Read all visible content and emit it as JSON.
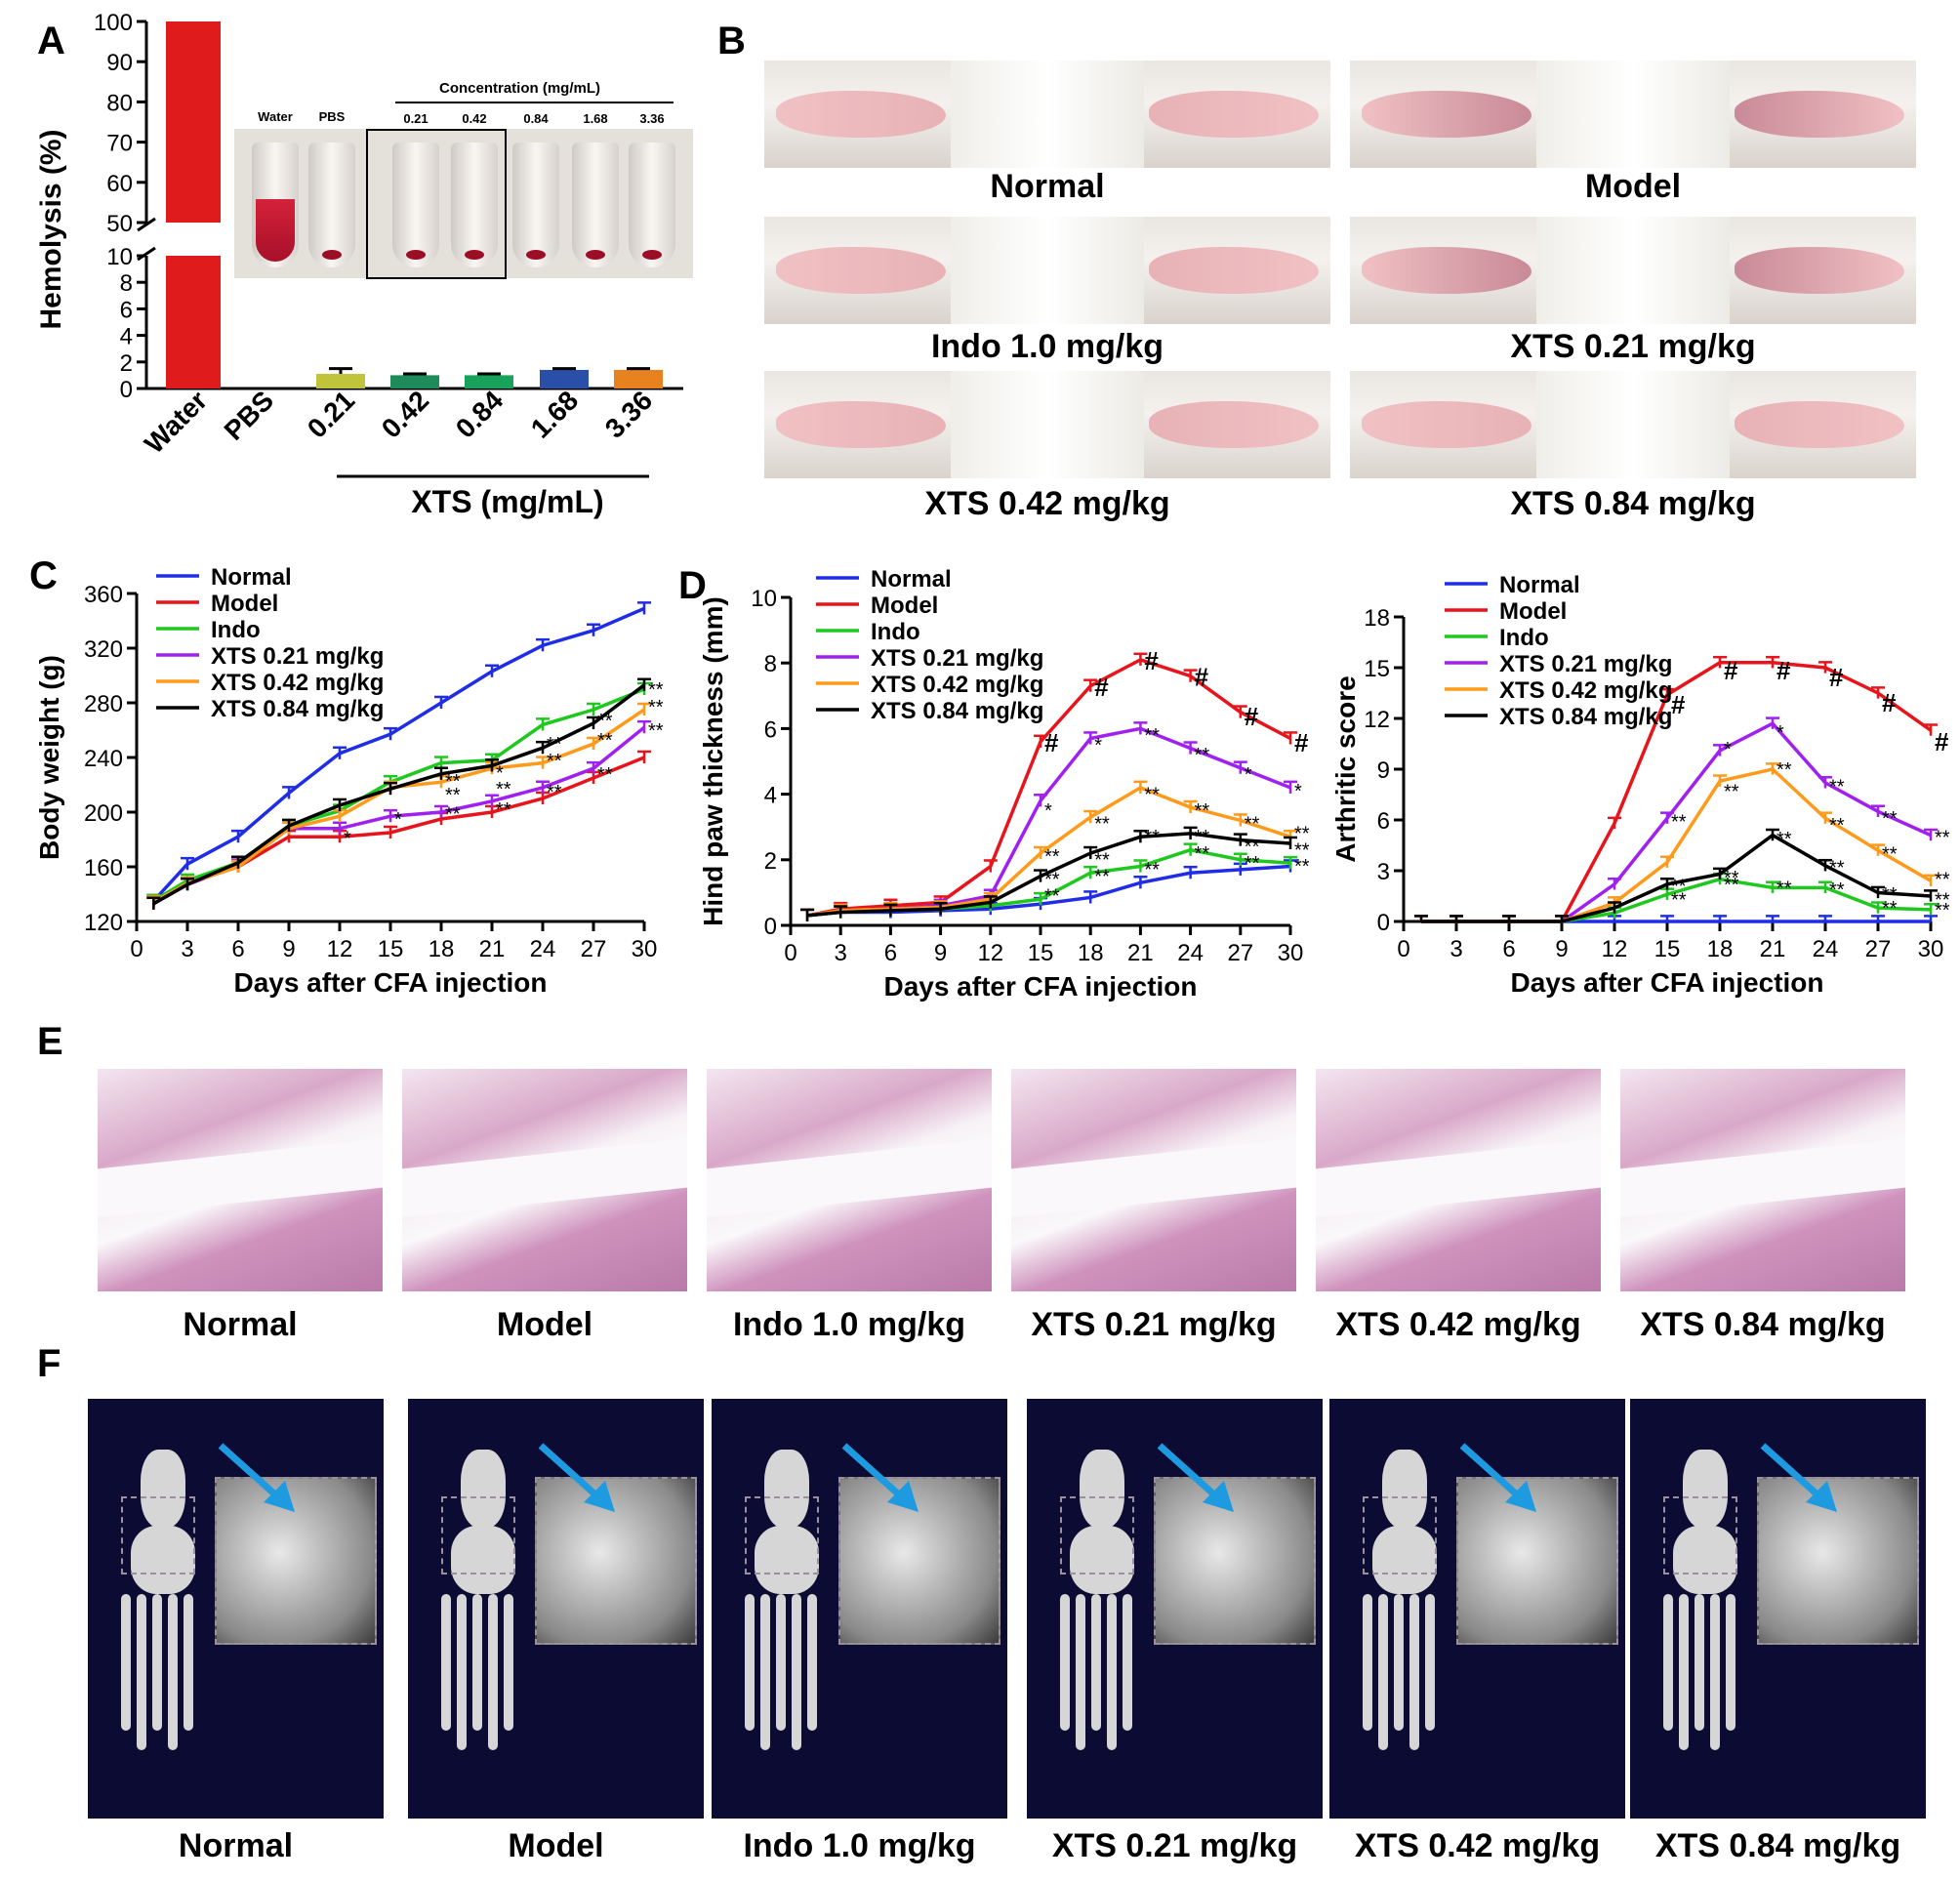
{
  "panels": {
    "A": "A",
    "B": "B",
    "C": "C",
    "D": "D",
    "E": "E",
    "F": "F"
  },
  "panel_b": {
    "captions": [
      "Normal",
      "Model",
      "Indo 1.0 mg/kg",
      "XTS 0.21 mg/kg",
      "XTS 0.42 mg/kg",
      "XTS 0.84 mg/kg"
    ]
  },
  "panel_e": {
    "captions": [
      "Normal",
      "Model",
      "Indo 1.0 mg/kg",
      "XTS 0.21 mg/kg",
      "XTS 0.42 mg/kg",
      "XTS 0.84 mg/kg"
    ]
  },
  "panel_f": {
    "captions": [
      "Normal",
      "Model",
      "Indo 1.0 mg/kg",
      "XTS 0.21 mg/kg",
      "XTS 0.42 mg/kg",
      "XTS 0.84 mg/kg"
    ]
  },
  "colors": {
    "normal": "#1f2de6",
    "model": "#e8141b",
    "indo": "#1ec81e",
    "xts021": "#a020f0",
    "xts042": "#ff9a1a",
    "xts084": "#000000",
    "arrow": "#1e9be0"
  },
  "chart_data": [
    {
      "id": "hemolysis",
      "type": "bar",
      "ylabel": "Hemolysis (%)",
      "xlabel_group": "XTS (mg/mL)",
      "categories": [
        "Water",
        "PBS",
        "0.21",
        "0.42",
        "0.84",
        "1.68",
        "3.36"
      ],
      "values": [
        100,
        0,
        1.1,
        1.0,
        1.0,
        1.4,
        1.4
      ],
      "errors": [
        0,
        0,
        0.4,
        0.1,
        0.1,
        0.1,
        0.1
      ],
      "bar_colors": [
        "#e01b1b",
        "#ffffff",
        "#bfc43a",
        "#1f8a5a",
        "#19a35a",
        "#2a4fa8",
        "#e8821e"
      ],
      "yticks_low": [
        "0",
        "2",
        "4",
        "6",
        "8",
        "10"
      ],
      "yticks_high": [
        "50",
        "60",
        "70",
        "80",
        "90",
        "100"
      ],
      "inset": {
        "title": "Concentration (mg/mL)",
        "tubes": [
          "Water",
          "PBS",
          "0.21",
          "0.42",
          "0.84",
          "1.68",
          "3.36"
        ]
      }
    },
    {
      "id": "body_weight",
      "type": "line",
      "ylabel": "Body weight (g)",
      "xlabel": "Days after CFA injection",
      "x": [
        1,
        3,
        6,
        9,
        12,
        15,
        18,
        21,
        24,
        27,
        30
      ],
      "xticks": [
        0,
        3,
        6,
        9,
        12,
        15,
        18,
        21,
        24,
        27,
        30
      ],
      "ylim": [
        120,
        360
      ],
      "yticks": [
        120,
        160,
        200,
        240,
        280,
        320,
        360
      ],
      "series": [
        {
          "name": "Normal",
          "key": "normal",
          "values": [
            135,
            162,
            182,
            214,
            243,
            257,
            280,
            303,
            322,
            333,
            349
          ]
        },
        {
          "name": "Model",
          "key": "model",
          "values": [
            133,
            148,
            160,
            182,
            182,
            185,
            195,
            200,
            210,
            225,
            240
          ]
        },
        {
          "name": "Indo",
          "key": "indo",
          "values": [
            135,
            150,
            163,
            190,
            201,
            222,
            236,
            238,
            264,
            275,
            290
          ]
        },
        {
          "name": "XTS 0.21 mg/kg",
          "key": "xts021",
          "values": [
            134,
            147,
            161,
            188,
            188,
            197,
            200,
            208,
            218,
            232,
            262
          ]
        },
        {
          "name": "XTS 0.42 mg/kg",
          "key": "xts042",
          "values": [
            134,
            148,
            160,
            188,
            197,
            218,
            222,
            232,
            236,
            250,
            275
          ]
        },
        {
          "name": "XTS 0.84 mg/kg",
          "key": "xts084",
          "values": [
            133,
            147,
            163,
            190,
            205,
            217,
            228,
            234,
            247,
            265,
            293
          ]
        }
      ],
      "annotations": [
        {
          "x": 12,
          "y": 176,
          "text": "*"
        },
        {
          "x": 15,
          "y": 190,
          "text": "*"
        },
        {
          "x": 18,
          "y": 218,
          "text": "**"
        },
        {
          "x": 18,
          "y": 208,
          "text": "**"
        },
        {
          "x": 18,
          "y": 194,
          "text": "**"
        },
        {
          "x": 21,
          "y": 224,
          "text": "*"
        },
        {
          "x": 21,
          "y": 212,
          "text": "**"
        },
        {
          "x": 21,
          "y": 197,
          "text": "**"
        },
        {
          "x": 24,
          "y": 245,
          "text": "**"
        },
        {
          "x": 24,
          "y": 233,
          "text": "**"
        },
        {
          "x": 24,
          "y": 210,
          "text": "**"
        },
        {
          "x": 27,
          "y": 262,
          "text": "**"
        },
        {
          "x": 27,
          "y": 248,
          "text": "**"
        },
        {
          "x": 27,
          "y": 223,
          "text": "**"
        },
        {
          "x": 30,
          "y": 285,
          "text": "**"
        },
        {
          "x": 30,
          "y": 272,
          "text": "**"
        },
        {
          "x": 30,
          "y": 255,
          "text": "**"
        }
      ]
    },
    {
      "id": "paw_thickness",
      "type": "line",
      "ylabel": "Hind paw thickness (mm)",
      "xlabel": "Days after CFA injection",
      "x": [
        1,
        3,
        6,
        9,
        12,
        15,
        18,
        21,
        24,
        27,
        30
      ],
      "xticks": [
        0,
        3,
        6,
        9,
        12,
        15,
        18,
        21,
        24,
        27,
        30
      ],
      "ylim": [
        0,
        10
      ],
      "yticks": [
        0,
        2,
        4,
        6,
        8,
        10
      ],
      "series": [
        {
          "name": "Normal",
          "key": "normal",
          "values": [
            0.3,
            0.4,
            0.4,
            0.45,
            0.5,
            0.65,
            0.85,
            1.3,
            1.6,
            1.7,
            1.8
          ]
        },
        {
          "name": "Model",
          "key": "model",
          "values": [
            0.3,
            0.5,
            0.6,
            0.7,
            1.8,
            5.6,
            7.3,
            8.1,
            7.6,
            6.5,
            5.7
          ]
        },
        {
          "name": "Indo",
          "key": "indo",
          "values": [
            0.3,
            0.4,
            0.45,
            0.5,
            0.6,
            0.8,
            1.6,
            1.8,
            2.3,
            2.0,
            1.9
          ]
        },
        {
          "name": "XTS 0.21 mg/kg",
          "key": "xts021",
          "values": [
            0.3,
            0.45,
            0.5,
            0.6,
            0.9,
            3.8,
            5.7,
            6.0,
            5.4,
            4.8,
            4.2
          ]
        },
        {
          "name": "XTS 0.42 mg/kg",
          "key": "xts042",
          "values": [
            0.3,
            0.45,
            0.5,
            0.55,
            0.8,
            2.2,
            3.3,
            4.2,
            3.6,
            3.2,
            2.7
          ]
        },
        {
          "name": "XTS 0.84 mg/kg",
          "key": "xts084",
          "values": [
            0.3,
            0.4,
            0.45,
            0.5,
            0.7,
            1.5,
            2.2,
            2.7,
            2.8,
            2.6,
            2.5
          ]
        }
      ],
      "annotations": [
        {
          "x": 15,
          "y": 5.3,
          "text": "#"
        },
        {
          "x": 18,
          "y": 7.0,
          "text": "#"
        },
        {
          "x": 21,
          "y": 7.8,
          "text": "#"
        },
        {
          "x": 24,
          "y": 7.3,
          "text": "#"
        },
        {
          "x": 27,
          "y": 6.1,
          "text": "#"
        },
        {
          "x": 30,
          "y": 5.3,
          "text": "#"
        },
        {
          "x": 15,
          "y": 3.3,
          "text": "*"
        },
        {
          "x": 18,
          "y": 5.3,
          "text": "*"
        },
        {
          "x": 21,
          "y": 5.6,
          "text": "**"
        },
        {
          "x": 24,
          "y": 5.0,
          "text": "**"
        },
        {
          "x": 27,
          "y": 4.4,
          "text": "*"
        },
        {
          "x": 30,
          "y": 3.9,
          "text": "*"
        },
        {
          "x": 15,
          "y": 1.9,
          "text": "**"
        },
        {
          "x": 18,
          "y": 2.9,
          "text": "**"
        },
        {
          "x": 21,
          "y": 3.8,
          "text": "**"
        },
        {
          "x": 24,
          "y": 3.3,
          "text": "**"
        },
        {
          "x": 27,
          "y": 2.9,
          "text": "**"
        },
        {
          "x": 30,
          "y": 2.6,
          "text": "**"
        },
        {
          "x": 15,
          "y": 1.2,
          "text": "**"
        },
        {
          "x": 18,
          "y": 1.8,
          "text": "**"
        },
        {
          "x": 21,
          "y": 2.5,
          "text": "**"
        },
        {
          "x": 24,
          "y": 2.5,
          "text": "**"
        },
        {
          "x": 27,
          "y": 2.2,
          "text": "**"
        },
        {
          "x": 30,
          "y": 2.1,
          "text": "**"
        },
        {
          "x": 15,
          "y": 0.7,
          "text": "**"
        },
        {
          "x": 18,
          "y": 1.3,
          "text": "**"
        },
        {
          "x": 21,
          "y": 1.5,
          "text": "**"
        },
        {
          "x": 24,
          "y": 2.0,
          "text": "**"
        },
        {
          "x": 27,
          "y": 1.7,
          "text": "**"
        },
        {
          "x": 30,
          "y": 1.6,
          "text": "**"
        }
      ]
    },
    {
      "id": "arthritic_score",
      "type": "line",
      "ylabel": "Arthritic score",
      "xlabel": "Days after CFA injection",
      "x": [
        1,
        3,
        6,
        9,
        12,
        15,
        18,
        21,
        24,
        27,
        30
      ],
      "xticks": [
        0,
        3,
        6,
        9,
        12,
        15,
        18,
        21,
        24,
        27,
        30
      ],
      "ylim": [
        0,
        18
      ],
      "yticks": [
        0,
        3,
        6,
        9,
        12,
        15,
        18
      ],
      "series": [
        {
          "name": "Normal",
          "key": "normal",
          "values": [
            0,
            0,
            0,
            0,
            0,
            0,
            0,
            0,
            0,
            0,
            0
          ]
        },
        {
          "name": "Model",
          "key": "model",
          "values": [
            0,
            0,
            0,
            0,
            5.8,
            13.4,
            15.3,
            15.3,
            15.0,
            13.5,
            11.3
          ]
        },
        {
          "name": "Indo",
          "key": "indo",
          "values": [
            0,
            0,
            0,
            0,
            0.5,
            1.6,
            2.5,
            2.0,
            2.0,
            0.8,
            0.7
          ]
        },
        {
          "name": "XTS 0.21 mg/kg",
          "key": "xts021",
          "values": [
            0,
            0,
            0,
            0,
            2.2,
            6.1,
            10.1,
            11.7,
            8.2,
            6.5,
            5.1
          ]
        },
        {
          "name": "XTS 0.42 mg/kg",
          "key": "xts042",
          "values": [
            0,
            0,
            0,
            0,
            1.1,
            3.5,
            8.3,
            9.0,
            6.1,
            4.2,
            2.4
          ]
        },
        {
          "name": "XTS 0.84 mg/kg",
          "key": "xts084",
          "values": [
            0,
            0,
            0,
            0,
            0.8,
            2.2,
            2.8,
            5.1,
            3.3,
            1.7,
            1.5
          ]
        }
      ],
      "annotations": [
        {
          "x": 15,
          "y": 12.3,
          "text": "#"
        },
        {
          "x": 18,
          "y": 14.3,
          "text": "#"
        },
        {
          "x": 21,
          "y": 14.3,
          "text": "#"
        },
        {
          "x": 24,
          "y": 13.9,
          "text": "#"
        },
        {
          "x": 27,
          "y": 12.4,
          "text": "#"
        },
        {
          "x": 30,
          "y": 10.1,
          "text": "#"
        },
        {
          "x": 18,
          "y": 9.8,
          "text": "*"
        },
        {
          "x": 21,
          "y": 10.8,
          "text": "*"
        },
        {
          "x": 24,
          "y": 7.6,
          "text": "**"
        },
        {
          "x": 27,
          "y": 5.7,
          "text": "**"
        },
        {
          "x": 30,
          "y": 4.6,
          "text": "**"
        },
        {
          "x": 15,
          "y": 5.5,
          "text": "**"
        },
        {
          "x": 18,
          "y": 7.3,
          "text": "**"
        },
        {
          "x": 21,
          "y": 8.6,
          "text": "**"
        },
        {
          "x": 24,
          "y": 5.3,
          "text": "**"
        },
        {
          "x": 27,
          "y": 3.6,
          "text": "**"
        },
        {
          "x": 30,
          "y": 2.1,
          "text": "**"
        },
        {
          "x": 15,
          "y": 1.7,
          "text": "**"
        },
        {
          "x": 18,
          "y": 2.2,
          "text": "**"
        },
        {
          "x": 21,
          "y": 4.5,
          "text": "**"
        },
        {
          "x": 24,
          "y": 2.8,
          "text": "**"
        },
        {
          "x": 27,
          "y": 1.2,
          "text": "**"
        },
        {
          "x": 30,
          "y": 0.9,
          "text": "**"
        },
        {
          "x": 15,
          "y": 0.9,
          "text": "**"
        },
        {
          "x": 18,
          "y": 1.8,
          "text": "**"
        },
        {
          "x": 21,
          "y": 1.6,
          "text": "**"
        },
        {
          "x": 24,
          "y": 1.5,
          "text": "**"
        },
        {
          "x": 27,
          "y": 0.4,
          "text": "**"
        },
        {
          "x": 30,
          "y": 0.3,
          "text": "**"
        }
      ]
    }
  ]
}
